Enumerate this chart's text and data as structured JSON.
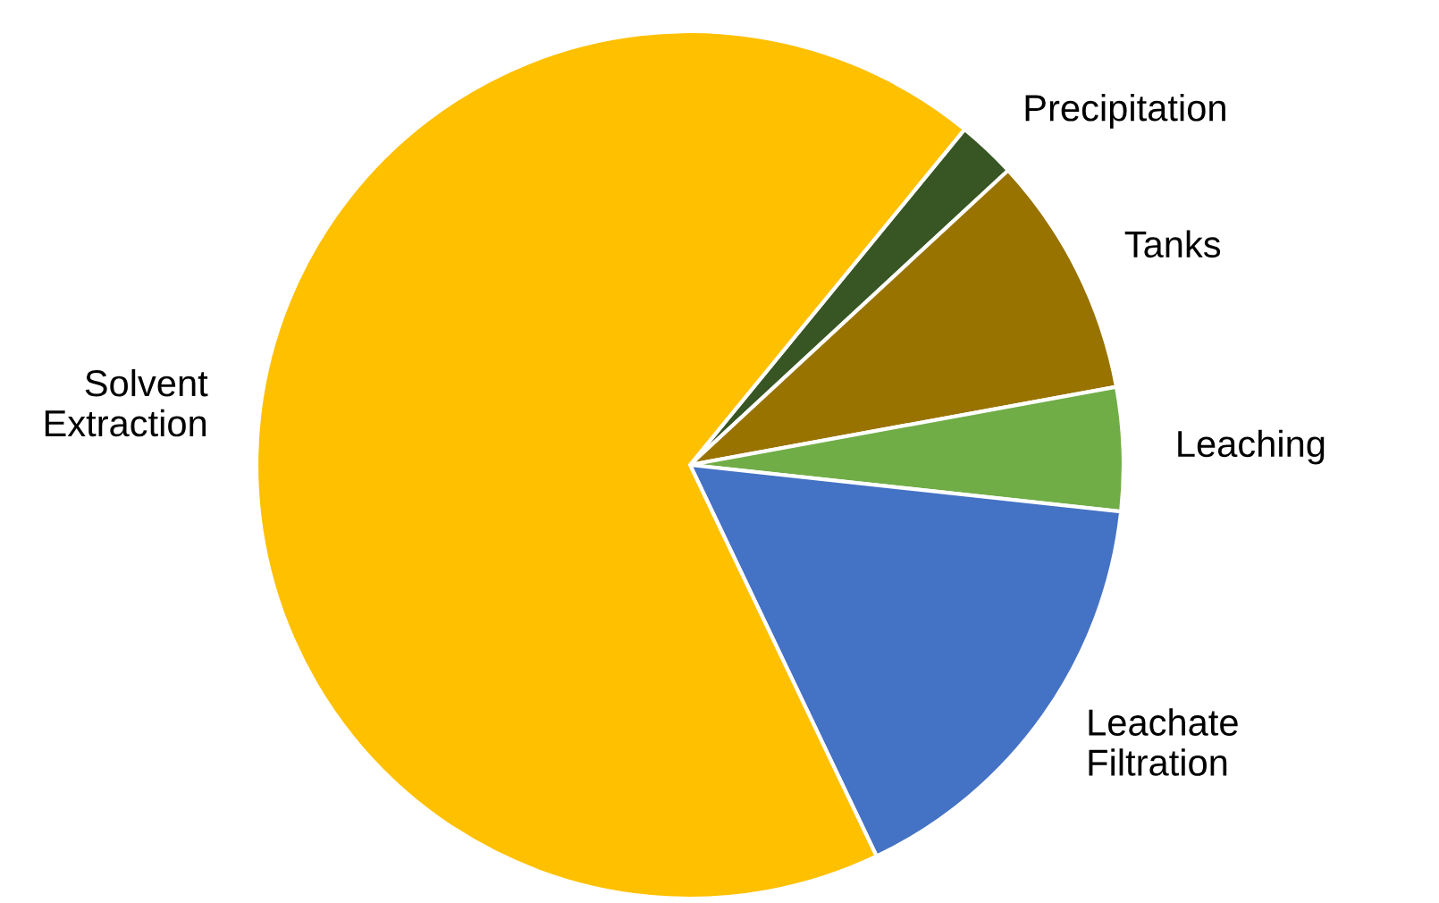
{
  "chart_data": {
    "type": "pie",
    "categories": [
      "Precipitation",
      "Tanks",
      "Leaching",
      "Leachate\nFiltration",
      "Solvent\nExtraction"
    ],
    "values": [
      2.2,
      9.0,
      4.6,
      16.2,
      68.0
    ],
    "colors": [
      "#375623",
      "#997300",
      "#70ad47",
      "#4472c4",
      "#ffc000"
    ],
    "legend": false
  }
}
